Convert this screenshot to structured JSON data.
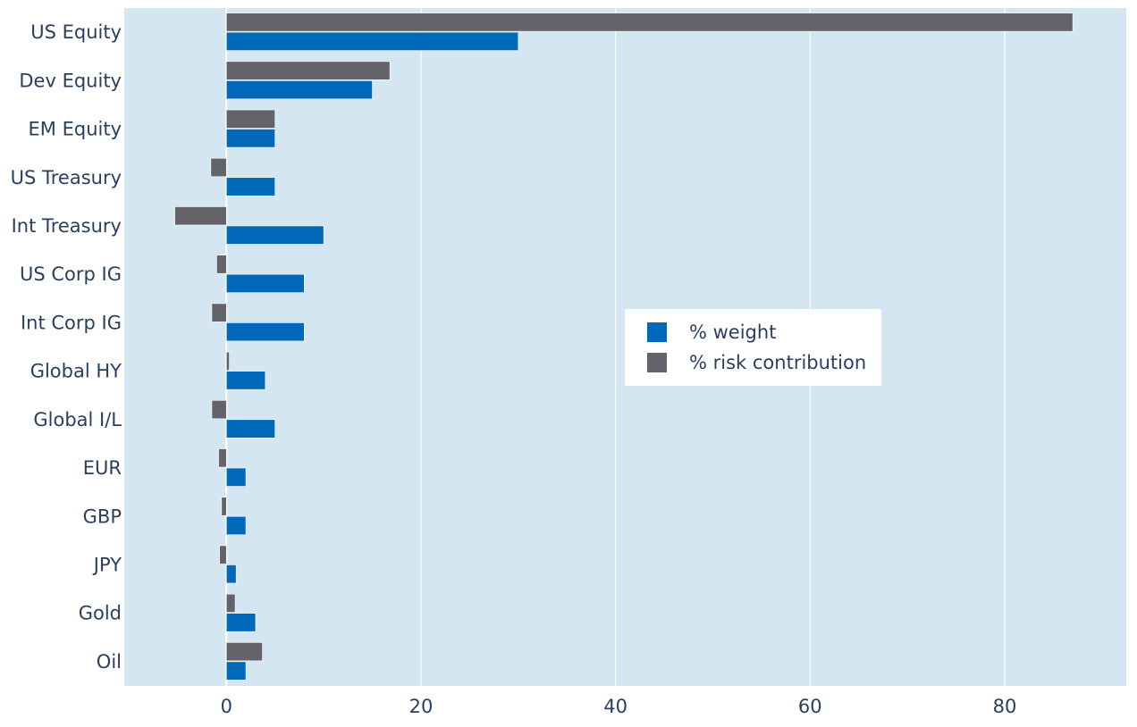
{
  "colors": {
    "plot_bg": "#d4e6f2",
    "grid": "#ffffff",
    "weight": "#0068b8",
    "risk": "#636369",
    "text": "#2a3f5f"
  },
  "chart_data": {
    "type": "bar",
    "orientation": "horizontal",
    "categories": [
      "US Equity",
      "Dev Equity",
      "EM Equity",
      "US Treasury",
      "Int Treasury",
      "US Corp IG",
      "Int Corp IG",
      "Global HY",
      "Global I/L",
      "EUR",
      "GBP",
      "JPY",
      "Gold",
      "Oil"
    ],
    "series": [
      {
        "name": "% weight",
        "color": "#0068b8",
        "values": [
          30,
          15,
          5,
          5,
          10,
          8,
          8,
          4,
          5,
          2,
          2,
          1,
          3,
          2
        ]
      },
      {
        "name": "% risk contribution",
        "color": "#636369",
        "values": [
          87,
          16.8,
          5,
          -1.6,
          -5.3,
          -1.0,
          -1.5,
          0.3,
          -1.5,
          -0.8,
          -0.5,
          -0.7,
          0.9,
          3.7
        ]
      }
    ],
    "xlim": [
      -10.5,
      92.5
    ],
    "xticks": [
      "0",
      "20",
      "40",
      "60",
      "80"
    ],
    "xtick_values": [
      0,
      20,
      40,
      60,
      80
    ],
    "grid": true,
    "legend_position": "center-right"
  }
}
